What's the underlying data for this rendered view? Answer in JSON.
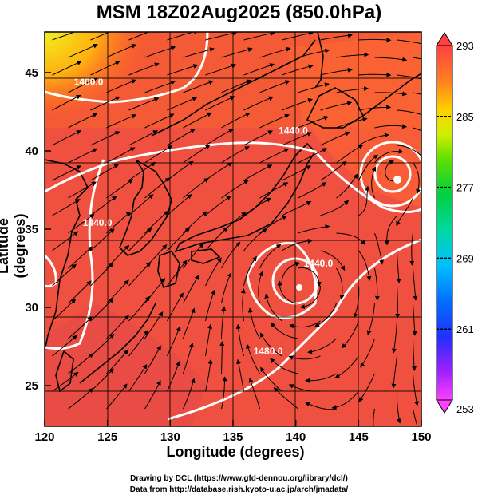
{
  "title": "MSM 18Z02Aug2025 (850.0hPa)",
  "x_axis": {
    "title": "Longitude (degrees)",
    "ticks": [
      120,
      125,
      130,
      135,
      140,
      145,
      150
    ],
    "range": [
      120,
      150
    ]
  },
  "y_axis": {
    "title": "Latitude  (degrees)",
    "ticks": [
      25,
      30,
      35,
      40,
      45
    ],
    "range": [
      22.4,
      47.6
    ]
  },
  "colorbar": {
    "ticks": [
      293,
      285,
      277,
      269,
      261,
      253
    ],
    "range": [
      253,
      293
    ],
    "colors": [
      "#ff00ff",
      "#c000ff",
      "#4000ff",
      "#0040ff",
      "#00a0ff",
      "#00e0c0",
      "#00d060",
      "#40e000",
      "#c0f000",
      "#f0f000",
      "#ffb000",
      "#ff6020",
      "#ff3030"
    ]
  },
  "contours": [
    {
      "label": "1400.0",
      "label_lon": 123.5,
      "label_lat": 44.2
    },
    {
      "label": "1440.0",
      "label_lon": 139.8,
      "label_lat": 41.1
    },
    {
      "label": "1440.0",
      "label_lon": 124.2,
      "label_lat": 35.2
    },
    {
      "label": "1440.0",
      "label_lon": 141.8,
      "label_lat": 32.6
    },
    {
      "label": "1480.0",
      "label_lon": 137.8,
      "label_lat": 27.0
    }
  ],
  "cyclones": [
    {
      "lon": 148.0,
      "lat": 38.8
    },
    {
      "lon": 140.2,
      "lat": 31.6
    }
  ],
  "credits": [
    "Drawing by DCL (https://www.gfd-dennou.org/library/dcl/)",
    "Data from http://database.rish.kyoto-u.ac.jp/arch/jmadata/"
  ]
}
